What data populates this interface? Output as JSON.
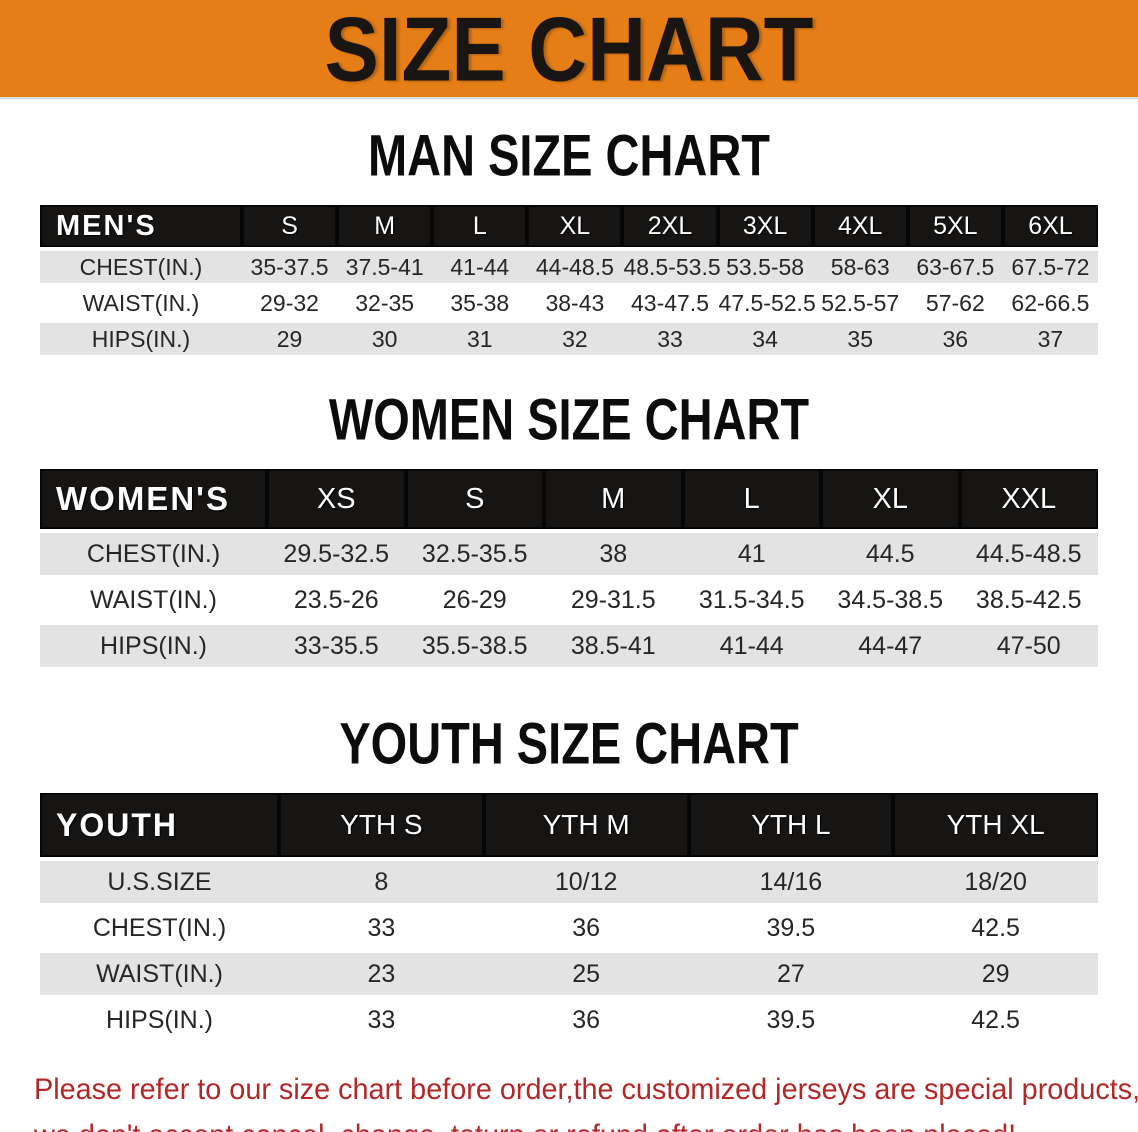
{
  "banner": {
    "title": "SIZE CHART"
  },
  "colors": {
    "banner_bg": "#E67E17",
    "table_header_bg": "#171513",
    "row_alt_bg": "#E3E3E3",
    "note_text": "#B22727",
    "heading_text": "#0c0c0c"
  },
  "men": {
    "heading": "MAN SIZE CHART",
    "label": "MEN'S",
    "sizes": [
      "S",
      "M",
      "L",
      "XL",
      "2XL",
      "3XL",
      "4XL",
      "5XL",
      "6XL"
    ],
    "rows": [
      {
        "label": "CHEST(IN.)",
        "values": [
          "35-37.5",
          "37.5-41",
          "41-44",
          "44-48.5",
          "48.5-53.5",
          "53.5-58",
          "58-63",
          "63-67.5",
          "67.5-72"
        ]
      },
      {
        "label": "WAIST(IN.)",
        "values": [
          "29-32",
          "32-35",
          "35-38",
          "38-43",
          "43-47.5",
          "47.5-52.5",
          "52.5-57",
          "57-62",
          "62-66.5"
        ]
      },
      {
        "label": "HIPS(IN.)",
        "values": [
          "29",
          "30",
          "31",
          "32",
          "33",
          "34",
          "35",
          "36",
          "37"
        ]
      }
    ]
  },
  "women": {
    "heading": "WOMEN SIZE CHART",
    "label": "WOMEN'S",
    "sizes": [
      "XS",
      "S",
      "M",
      "L",
      "XL",
      "XXL"
    ],
    "rows": [
      {
        "label": "CHEST(IN.)",
        "values": [
          "29.5-32.5",
          "32.5-35.5",
          "38",
          "41",
          "44.5",
          "44.5-48.5"
        ]
      },
      {
        "label": "WAIST(IN.)",
        "values": [
          "23.5-26",
          "26-29",
          "29-31.5",
          "31.5-34.5",
          "34.5-38.5",
          "38.5-42.5"
        ]
      },
      {
        "label": "HIPS(IN.)",
        "values": [
          "33-35.5",
          "35.5-38.5",
          "38.5-41",
          "41-44",
          "44-47",
          "47-50"
        ]
      }
    ]
  },
  "youth": {
    "heading": "YOUTH SIZE CHART",
    "label": "YOUTH",
    "sizes": [
      "YTH S",
      "YTH M",
      "YTH L",
      "YTH XL"
    ],
    "rows": [
      {
        "label": "U.S.SIZE",
        "values": [
          "8",
          "10/12",
          "14/16",
          "18/20"
        ]
      },
      {
        "label": "CHEST(IN.)",
        "values": [
          "33",
          "36",
          "39.5",
          "42.5"
        ]
      },
      {
        "label": "WAIST(IN.)",
        "values": [
          "23",
          "25",
          "27",
          "29"
        ]
      },
      {
        "label": "HIPS(IN.)",
        "values": [
          "33",
          "36",
          "39.5",
          "42.5"
        ]
      }
    ]
  },
  "note": {
    "line1": "Please refer to our size chart before order,the customized jerseys are special products,",
    "line2": "we don't accept cancel, change, teturn or refund after order has been placed!"
  }
}
